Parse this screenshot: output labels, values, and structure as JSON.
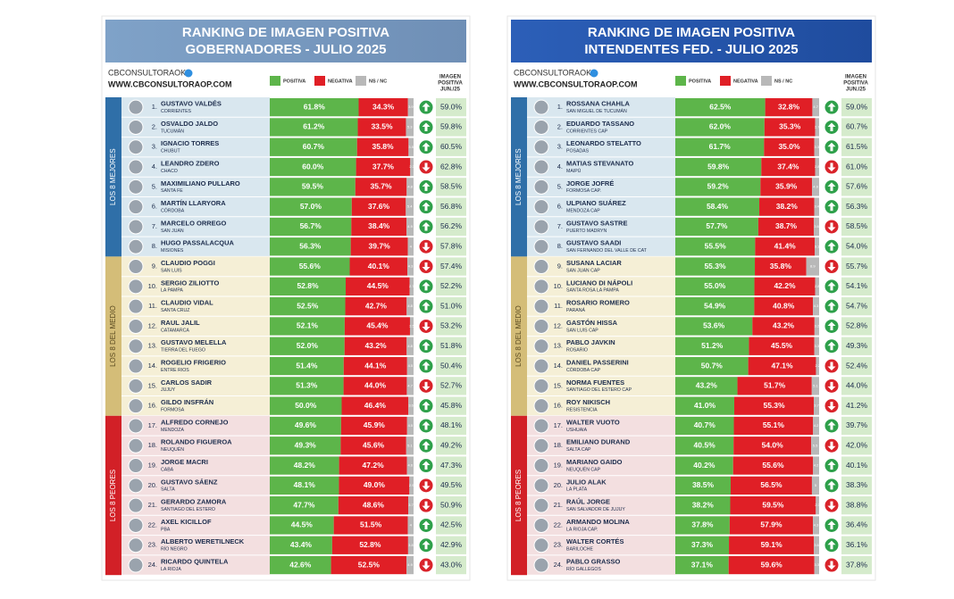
{
  "panels": [
    {
      "header": [
        "RANKING DE IMAGEN POSITIVA",
        "GOBERNADORES - JULIO 2025"
      ],
      "brand": "CBCONSULTORAOK",
      "url": "WWW.CBCONSULTORAOP.COM",
      "legend": [
        "POSITIVA",
        "NEGATIVA",
        "NS / NC"
      ],
      "column_header": [
        "IMAGEN",
        "POSITIVA",
        "JUN./25"
      ],
      "groups": [
        {
          "label": "LOS 8 MEJORES",
          "rows": [
            {
              "rank": "1.",
              "name": "GUSTAVO VALDÉS",
              "place": "CORRIENTES",
              "positive": 61.8,
              "positive_label": "61.8%",
              "negative": 34.3,
              "negative_label": "34.3%",
              "nsnc": 3.9,
              "trend": "up",
              "previous": "59.0%"
            },
            {
              "rank": "2.",
              "name": "OSVALDO JALDO",
              "place": "TUCUMÁN",
              "positive": 61.2,
              "positive_label": "61.2%",
              "negative": 33.5,
              "negative_label": "33.5%",
              "nsnc": 5.3,
              "trend": "up",
              "previous": "59.8%"
            },
            {
              "rank": "3.",
              "name": "IGNACIO TORRES",
              "place": "CHUBUT",
              "positive": 60.7,
              "positive_label": "60.7%",
              "negative": 35.8,
              "negative_label": "35.8%",
              "nsnc": 3.5,
              "trend": "up",
              "previous": "60.5%"
            },
            {
              "rank": "4.",
              "name": "LEANDRO ZDERO",
              "place": "CHACO",
              "positive": 60.0,
              "positive_label": "60.0%",
              "negative": 37.7,
              "negative_label": "37.7%",
              "nsnc": 2.3,
              "trend": "down",
              "previous": "62.8%"
            },
            {
              "rank": "5.",
              "name": "MAXIMILIANO PULLARO",
              "place": "SANTA FE",
              "positive": 59.5,
              "positive_label": "59.5%",
              "negative": 35.7,
              "negative_label": "35.7%",
              "nsnc": 4.8,
              "trend": "up",
              "previous": "58.5%"
            },
            {
              "rank": "6.",
              "name": "MARTÍN LLARYORA",
              "place": "CÓRDOBA",
              "positive": 57.0,
              "positive_label": "57.0%",
              "negative": 37.6,
              "negative_label": "37.6%",
              "nsnc": 5.4,
              "trend": "up",
              "previous": "56.8%"
            },
            {
              "rank": "7.",
              "name": "MARCELO ORREGO",
              "place": "SAN JUAN",
              "positive": 56.7,
              "positive_label": "56.7%",
              "negative": 38.4,
              "negative_label": "38.4%",
              "nsnc": 4.9,
              "trend": "up",
              "previous": "56.2%"
            },
            {
              "rank": "8.",
              "name": "HUGO PASSALACQUA",
              "place": "MISIONES",
              "positive": 56.3,
              "positive_label": "56.3%",
              "negative": 39.7,
              "negative_label": "39.7%",
              "nsnc": 4.0,
              "trend": "down",
              "previous": "57.8%"
            }
          ]
        },
        {
          "label": "LOS 8 DEL MEDIO",
          "rows": [
            {
              "rank": "9.",
              "name": "CLAUDIO POGGI",
              "place": "SAN LUIS",
              "positive": 55.6,
              "positive_label": "55.6%",
              "negative": 40.1,
              "negative_label": "40.1%",
              "nsnc": 4.3,
              "trend": "down",
              "previous": "57.4%"
            },
            {
              "rank": "10.",
              "name": "SERGIO ZILIOTTO",
              "place": "LA PAMPA",
              "positive": 52.8,
              "positive_label": "52.8%",
              "negative": 44.5,
              "negative_label": "44.5%",
              "nsnc": 2.7,
              "trend": "up",
              "previous": "52.2%"
            },
            {
              "rank": "11.",
              "name": "CLAUDIO VIDAL",
              "place": "SANTA CRUZ",
              "positive": 52.5,
              "positive_label": "52.5%",
              "negative": 42.7,
              "negative_label": "42.7%",
              "nsnc": 4.8,
              "trend": "up",
              "previous": "51.0%"
            },
            {
              "rank": "12.",
              "name": "RAUL JALIL",
              "place": "CATAMARCA",
              "positive": 52.1,
              "positive_label": "52.1%",
              "negative": 45.4,
              "negative_label": "45.4%",
              "nsnc": 2.5,
              "trend": "down",
              "previous": "53.2%"
            },
            {
              "rank": "13.",
              "name": "GUSTAVO MELELLA",
              "place": "TIERRA DEL FUEGO",
              "positive": 52.0,
              "positive_label": "52.0%",
              "negative": 43.2,
              "negative_label": "43.2%",
              "nsnc": 4.8,
              "trend": "up",
              "previous": "51.8%"
            },
            {
              "rank": "14.",
              "name": "ROGELIO FRIGERIO",
              "place": "ENTRE RIOS",
              "positive": 51.4,
              "positive_label": "51.4%",
              "negative": 44.1,
              "negative_label": "44.1%",
              "nsnc": 4.5,
              "trend": "up",
              "previous": "50.4%"
            },
            {
              "rank": "15.",
              "name": "CARLOS SADIR",
              "place": "JUJUY",
              "positive": 51.3,
              "positive_label": "51.3%",
              "negative": 44.0,
              "negative_label": "44.0%",
              "nsnc": 4.7,
              "trend": "down",
              "previous": "52.7%"
            },
            {
              "rank": "16.",
              "name": "GILDO INSFRÁN",
              "place": "FORMOSA",
              "positive": 50.0,
              "positive_label": "50.0%",
              "negative": 46.4,
              "negative_label": "46.4%",
              "nsnc": 3.6,
              "trend": "up",
              "previous": "45.8%"
            }
          ]
        },
        {
          "label": "LOS 8 PEORES",
          "rows": [
            {
              "rank": "17.",
              "name": "ALFREDO CORNEJO",
              "place": "MENDOZA",
              "positive": 49.6,
              "positive_label": "49.6%",
              "negative": 45.9,
              "negative_label": "45.9%",
              "nsnc": 4.5,
              "trend": "up",
              "previous": "48.1%"
            },
            {
              "rank": "18.",
              "name": "ROLANDO FIGUEROA",
              "place": "NEUQUÉN",
              "positive": 49.3,
              "positive_label": "49.3%",
              "negative": 45.6,
              "negative_label": "45.6%",
              "nsnc": 5.1,
              "trend": "up",
              "previous": "49.2%"
            },
            {
              "rank": "19.",
              "name": "JORGE MACRI",
              "place": "CABA",
              "positive": 48.2,
              "positive_label": "48.2%",
              "negative": 47.2,
              "negative_label": "47.2%",
              "nsnc": 4.6,
              "trend": "up",
              "previous": "47.3%"
            },
            {
              "rank": "20.",
              "name": "GUSTAVO SÁENZ",
              "place": "SALTA",
              "positive": 48.1,
              "positive_label": "48.1%",
              "negative": 49.0,
              "negative_label": "49.0%",
              "nsnc": 2.9,
              "trend": "down",
              "previous": "49.5%"
            },
            {
              "rank": "21.",
              "name": "GERARDO ZAMORA",
              "place": "SANTIAGO DEL ESTERO",
              "positive": 47.7,
              "positive_label": "47.7%",
              "negative": 48.6,
              "negative_label": "48.6%",
              "nsnc": 3.7,
              "trend": "down",
              "previous": "50.9%"
            },
            {
              "rank": "22.",
              "name": "AXEL KICILLOF",
              "place": "PBA",
              "positive": 44.5,
              "positive_label": "44.5%",
              "negative": 51.5,
              "negative_label": "51.5%",
              "nsnc": 4.0,
              "trend": "up",
              "previous": "42.5%"
            },
            {
              "rank": "23.",
              "name": "ALBERTO WERETILNECK",
              "place": "RÍO NEGRO",
              "positive": 43.4,
              "positive_label": "43.4%",
              "negative": 52.8,
              "negative_label": "52.8%",
              "nsnc": 3.8,
              "trend": "up",
              "previous": "42.9%"
            },
            {
              "rank": "24.",
              "name": "RICARDO QUINTELA",
              "place": "LA RIOJA",
              "positive": 42.6,
              "positive_label": "42.6%",
              "negative": 52.5,
              "negative_label": "52.5%",
              "nsnc": 4.9,
              "trend": "down",
              "previous": "43.0%"
            }
          ]
        }
      ]
    },
    {
      "header": [
        "RANKING DE IMAGEN POSITIVA",
        "INTENDENTES FED. - JULIO 2025"
      ],
      "brand": "CBCONSULTORAOK",
      "url": "WWW.CBCONSULTORAOP.COM",
      "legend": [
        "POSITIVA",
        "NEGATIVA",
        "NS / NC"
      ],
      "column_header": [
        "IMAGEN",
        "POSITIVA",
        "JUN./25"
      ],
      "groups": [
        {
          "label": "LOS 8 MEJORES",
          "rows": [
            {
              "rank": "1.",
              "name": "ROSSANA CHAHLA",
              "place": "SAN MIGUEL DE TUCUMÁN",
              "positive": 62.5,
              "positive_label": "62.5%",
              "negative": 32.8,
              "negative_label": "32.8%",
              "nsnc": 4.7,
              "trend": "up",
              "previous": "59.0%"
            },
            {
              "rank": "2.",
              "name": "EDUARDO TASSANO",
              "place": "CORRIENTES CAP",
              "positive": 62.0,
              "positive_label": "62.0%",
              "negative": 35.3,
              "negative_label": "35.3%",
              "nsnc": 2.7,
              "trend": "up",
              "previous": "60.7%"
            },
            {
              "rank": "3.",
              "name": "LEONARDO STELATTO",
              "place": "POSADAS",
              "positive": 61.7,
              "positive_label": "61.7%",
              "negative": 35.0,
              "negative_label": "35.0%",
              "nsnc": 3.3,
              "trend": "up",
              "previous": "61.5%"
            },
            {
              "rank": "4.",
              "name": "MATIAS STEVANATO",
              "place": "MAIPÚ",
              "positive": 59.8,
              "positive_label": "59.8%",
              "negative": 37.4,
              "negative_label": "37.4%",
              "nsnc": 2.8,
              "trend": "down",
              "previous": "61.0%"
            },
            {
              "rank": "5.",
              "name": "JORGE JOFRÉ",
              "place": "FORMOSA CAP.",
              "positive": 59.2,
              "positive_label": "59.2%",
              "negative": 35.9,
              "negative_label": "35.9%",
              "nsnc": 4.9,
              "trend": "up",
              "previous": "57.6%"
            },
            {
              "rank": "6.",
              "name": "ULPIANO SUÁREZ",
              "place": "MENDOZA CAP",
              "positive": 58.4,
              "positive_label": "58.4%",
              "negative": 38.2,
              "negative_label": "38.2%",
              "nsnc": 3.4,
              "trend": "up",
              "previous": "56.3%"
            },
            {
              "rank": "7.",
              "name": "GUSTAVO SASTRE",
              "place": "PUERTO MADRYN",
              "positive": 57.7,
              "positive_label": "57.7%",
              "negative": 38.7,
              "negative_label": "38.7%",
              "nsnc": 3.6,
              "trend": "down",
              "previous": "58.5%"
            },
            {
              "rank": "8.",
              "name": "GUSTAVO SAADI",
              "place": "SAN FERNANDO DEL VALLE DE CAT",
              "positive": 55.5,
              "positive_label": "55.5%",
              "negative": 41.4,
              "negative_label": "41.4%",
              "nsnc": 3.1,
              "trend": "up",
              "previous": "54.0%"
            }
          ]
        },
        {
          "label": "LOS 8 DEL MEDIO",
          "rows": [
            {
              "rank": "9.",
              "name": "SUSANA LACIAR",
              "place": "SAN JUAN CAP",
              "positive": 55.3,
              "positive_label": "55.3%",
              "negative": 35.8,
              "negative_label": "35.8%",
              "nsnc": 8.9,
              "trend": "down",
              "previous": "55.7%"
            },
            {
              "rank": "10.",
              "name": "LUCIANO DI NÁPOLI",
              "place": "SANTA ROSA LA PAMPA",
              "positive": 55.0,
              "positive_label": "55.0%",
              "negative": 42.2,
              "negative_label": "42.2%",
              "nsnc": 2.8,
              "trend": "up",
              "previous": "54.1%"
            },
            {
              "rank": "11.",
              "name": "ROSARIO ROMERO",
              "place": "PARANÁ",
              "positive": 54.9,
              "positive_label": "54.9%",
              "negative": 40.8,
              "negative_label": "40.8%",
              "nsnc": 4.3,
              "trend": "up",
              "previous": "54.7%"
            },
            {
              "rank": "12.",
              "name": "GASTÓN HISSA",
              "place": "SAN LUIS CAP",
              "positive": 53.6,
              "positive_label": "53.6%",
              "negative": 43.2,
              "negative_label": "43.2%",
              "nsnc": 3.2,
              "trend": "up",
              "previous": "52.8%"
            },
            {
              "rank": "13.",
              "name": "PABLO JAVKIN",
              "place": "ROSARIO",
              "positive": 51.2,
              "positive_label": "51.2%",
              "negative": 45.5,
              "negative_label": "45.5%",
              "nsnc": 3.3,
              "trend": "up",
              "previous": "49.3%"
            },
            {
              "rank": "14.",
              "name": "DANIEL PASSERINI",
              "place": "CÓRDOBA CAP",
              "positive": 50.7,
              "positive_label": "50.7%",
              "negative": 47.1,
              "negative_label": "47.1%",
              "nsnc": 2.2,
              "trend": "down",
              "previous": "52.4%"
            },
            {
              "rank": "15.",
              "name": "NORMA FUENTES",
              "place": "SANTIAGO DEL ESTERO CAP",
              "positive": 43.2,
              "positive_label": "43.2%",
              "negative": 51.7,
              "negative_label": "51.7%",
              "nsnc": 5.1,
              "trend": "down",
              "previous": "44.0%"
            },
            {
              "rank": "16.",
              "name": "ROY NIKISCH",
              "place": "RESISTENCIA",
              "positive": 41.0,
              "positive_label": "41.0%",
              "negative": 55.3,
              "negative_label": "55.3%",
              "nsnc": 3.7,
              "trend": "down",
              "previous": "41.2%"
            }
          ]
        },
        {
          "label": "LOS 8 PEORES",
          "rows": [
            {
              "rank": "17.",
              "name": "WALTER VUOTO",
              "place": "USHUAIA",
              "positive": 40.7,
              "positive_label": "40.7%",
              "negative": 55.1,
              "negative_label": "55.1%",
              "nsnc": 4.2,
              "trend": "up",
              "previous": "39.7%"
            },
            {
              "rank": "18.",
              "name": "EMILIANO DURAND",
              "place": "SALTA CAP",
              "positive": 40.5,
              "positive_label": "40.5%",
              "negative": 54.0,
              "negative_label": "54.0%",
              "nsnc": 5.5,
              "trend": "down",
              "previous": "42.0%"
            },
            {
              "rank": "19.",
              "name": "MARIANO GAIDO",
              "place": "NEUQUÉN CAP",
              "positive": 40.2,
              "positive_label": "40.2%",
              "negative": 55.6,
              "negative_label": "55.6%",
              "nsnc": 4.2,
              "trend": "up",
              "previous": "40.1%"
            },
            {
              "rank": "20.",
              "name": "JULIO ALAK",
              "place": "LA PLATA",
              "positive": 38.5,
              "positive_label": "38.5%",
              "negative": 56.5,
              "negative_label": "56.5%",
              "nsnc": 5.0,
              "trend": "up",
              "previous": "38.3%"
            },
            {
              "rank": "21.",
              "name": "RAÚL JORGE",
              "place": "SAN SALVADOR DE JUJUY",
              "positive": 38.2,
              "positive_label": "38.2%",
              "negative": 59.5,
              "negative_label": "59.5%",
              "nsnc": 2.3,
              "trend": "down",
              "previous": "38.8%"
            },
            {
              "rank": "22.",
              "name": "ARMANDO MOLINA",
              "place": "LA RIOJA CAP.",
              "positive": 37.8,
              "positive_label": "37.8%",
              "negative": 57.9,
              "negative_label": "57.9%",
              "nsnc": 4.3,
              "trend": "up",
              "previous": "36.4%"
            },
            {
              "rank": "23.",
              "name": "WALTER CORTÉS",
              "place": "BARILOCHE",
              "positive": 37.3,
              "positive_label": "37.3%",
              "negative": 59.1,
              "negative_label": "59.1%",
              "nsnc": 3.6,
              "trend": "up",
              "previous": "36.1%"
            },
            {
              "rank": "24.",
              "name": "PABLO GRASSO",
              "place": "RÍO GALLEGOS",
              "positive": 37.1,
              "positive_label": "37.1%",
              "negative": 59.6,
              "negative_label": "59.6%",
              "nsnc": 3.3,
              "trend": "down",
              "previous": "37.8%"
            }
          ]
        }
      ]
    }
  ]
}
